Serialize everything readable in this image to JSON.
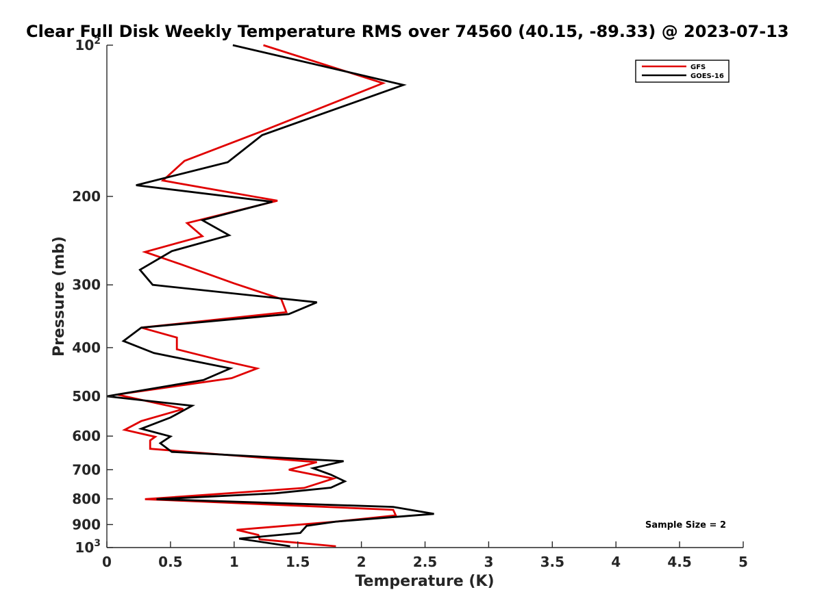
{
  "chart_data": {
    "type": "line",
    "title": "Clear Full Disk Weekly Temperature RMS over 74560 (40.15, -89.33) @ 2023-07-13",
    "xlabel": "Temperature (K)",
    "ylabel": "Pressure (mb)",
    "xlim": [
      0,
      5
    ],
    "ylim": [
      100,
      1000
    ],
    "y_scale": "log",
    "y_reversed": true,
    "x_ticks": [
      0,
      0.5,
      1,
      1.5,
      2,
      2.5,
      3,
      3.5,
      4,
      4.5,
      5
    ],
    "x_tick_labels": [
      "0",
      "0.5",
      "1",
      "1.5",
      "2",
      "2.5",
      "3",
      "3.5",
      "4",
      "4.5",
      "5"
    ],
    "y_ticks": [
      100,
      200,
      300,
      400,
      500,
      600,
      700,
      800,
      900,
      1000
    ],
    "y_tick_labels": [
      {
        "base": "10",
        "exp": "2"
      },
      {
        "base": "200",
        "exp": ""
      },
      {
        "base": "300",
        "exp": ""
      },
      {
        "base": "400",
        "exp": ""
      },
      {
        "base": "500",
        "exp": ""
      },
      {
        "base": "600",
        "exp": ""
      },
      {
        "base": "700",
        "exp": ""
      },
      {
        "base": "800",
        "exp": ""
      },
      {
        "base": "900",
        "exp": ""
      },
      {
        "base": "10",
        "exp": "3"
      }
    ],
    "grid": false,
    "legend_position": "top-right",
    "annotation": "Sample Size = 2",
    "series": [
      {
        "name": "GFS",
        "color": "#e00000",
        "points": [
          [
            1.23,
            100
          ],
          [
            2.17,
            119
          ],
          [
            1.2,
            149
          ],
          [
            0.61,
            170
          ],
          [
            0.44,
            186
          ],
          [
            1.34,
            204
          ],
          [
            0.63,
            226
          ],
          [
            0.75,
            240
          ],
          [
            0.3,
            258
          ],
          [
            0.58,
            273
          ],
          [
            1.0,
            298
          ],
          [
            1.37,
            320
          ],
          [
            1.41,
            340
          ],
          [
            0.27,
            365
          ],
          [
            0.55,
            382
          ],
          [
            0.55,
            403
          ],
          [
            0.88,
            423
          ],
          [
            1.18,
            440
          ],
          [
            0.98,
            460
          ],
          [
            0.08,
            496
          ],
          [
            0.6,
            530
          ],
          [
            0.27,
            560
          ],
          [
            0.14,
            583
          ],
          [
            0.38,
            602
          ],
          [
            0.34,
            612
          ],
          [
            0.34,
            636
          ],
          [
            1.65,
            676
          ],
          [
            1.43,
            700
          ],
          [
            1.78,
            729
          ],
          [
            1.55,
            761
          ],
          [
            0.3,
            801
          ],
          [
            2.25,
            841
          ],
          [
            2.27,
            863
          ],
          [
            1.8,
            888
          ],
          [
            1.02,
            922
          ],
          [
            1.19,
            944
          ],
          [
            1.2,
            963
          ],
          [
            1.8,
            994
          ]
        ]
      },
      {
        "name": "GOES-16",
        "color": "#000000",
        "points": [
          [
            0.99,
            100
          ],
          [
            2.33,
            120
          ],
          [
            1.22,
            151
          ],
          [
            0.95,
            171
          ],
          [
            0.23,
            190
          ],
          [
            1.3,
            205
          ],
          [
            0.75,
            223
          ],
          [
            0.96,
            239
          ],
          [
            0.51,
            257
          ],
          [
            0.26,
            280
          ],
          [
            0.36,
            300
          ],
          [
            1.65,
            325
          ],
          [
            1.43,
            343
          ],
          [
            0.27,
            365
          ],
          [
            0.13,
            388
          ],
          [
            0.37,
            410
          ],
          [
            0.97,
            440
          ],
          [
            0.76,
            464
          ],
          [
            0.0,
            500
          ],
          [
            0.67,
            522
          ],
          [
            0.5,
            551
          ],
          [
            0.27,
            580
          ],
          [
            0.5,
            601
          ],
          [
            0.42,
            620
          ],
          [
            0.51,
            645
          ],
          [
            1.86,
            673
          ],
          [
            1.62,
            695
          ],
          [
            1.76,
            716
          ],
          [
            1.87,
            738
          ],
          [
            1.76,
            760
          ],
          [
            1.32,
            780
          ],
          [
            0.39,
            801
          ],
          [
            2.25,
            830
          ],
          [
            2.57,
            857
          ],
          [
            1.8,
            888
          ],
          [
            1.57,
            905
          ],
          [
            1.52,
            935
          ],
          [
            1.04,
            960
          ],
          [
            1.44,
            994
          ]
        ]
      }
    ]
  }
}
